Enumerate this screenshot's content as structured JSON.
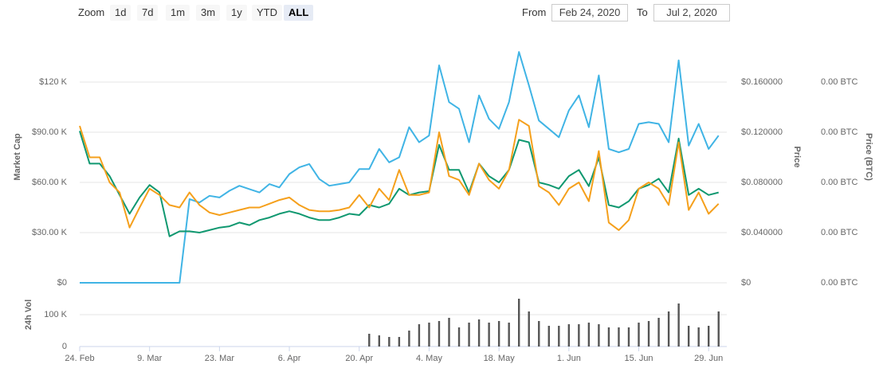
{
  "controls": {
    "zoom": "Zoom",
    "buttons": [
      "1d",
      "7d",
      "1m",
      "3m",
      "1y",
      "YTD",
      "ALL"
    ],
    "selected": "ALL",
    "from": "From",
    "from_date": "Feb 24, 2020",
    "to": "To",
    "to_date": "Jul 2, 2020"
  },
  "chart_data": [
    {
      "type": "line",
      "x": [
        "2020-02-24",
        "2020-02-26",
        "2020-02-28",
        "2020-03-01",
        "2020-03-03",
        "2020-03-05",
        "2020-03-07",
        "2020-03-09",
        "2020-03-11",
        "2020-03-13",
        "2020-03-15",
        "2020-03-17",
        "2020-03-19",
        "2020-03-21",
        "2020-03-23",
        "2020-03-25",
        "2020-03-27",
        "2020-03-29",
        "2020-03-31",
        "2020-04-02",
        "2020-04-04",
        "2020-04-06",
        "2020-04-08",
        "2020-04-10",
        "2020-04-12",
        "2020-04-14",
        "2020-04-16",
        "2020-04-18",
        "2020-04-20",
        "2020-04-22",
        "2020-04-24",
        "2020-04-26",
        "2020-04-28",
        "2020-04-30",
        "2020-05-02",
        "2020-05-04",
        "2020-05-06",
        "2020-05-08",
        "2020-05-10",
        "2020-05-12",
        "2020-05-14",
        "2020-05-16",
        "2020-05-18",
        "2020-05-20",
        "2020-05-22",
        "2020-05-24",
        "2020-05-26",
        "2020-05-28",
        "2020-05-30",
        "2020-06-01",
        "2020-06-03",
        "2020-06-05",
        "2020-06-07",
        "2020-06-09",
        "2020-06-11",
        "2020-06-13",
        "2020-06-15",
        "2020-06-17",
        "2020-06-19",
        "2020-06-21",
        "2020-06-23",
        "2020-06-25",
        "2020-06-27",
        "2020-06-29",
        "2020-07-01"
      ],
      "xlim": [
        "2020-02-24",
        "2020-07-02"
      ],
      "xticks": [
        {
          "value": "2020-02-24",
          "label": "24. Feb"
        },
        {
          "value": "2020-03-09",
          "label": "9. Mar"
        },
        {
          "value": "2020-03-23",
          "label": "23. Mar"
        },
        {
          "value": "2020-04-06",
          "label": "6. Apr"
        },
        {
          "value": "2020-04-20",
          "label": "20. Apr"
        },
        {
          "value": "2020-05-04",
          "label": "4. May"
        },
        {
          "value": "2020-05-18",
          "label": "18. May"
        },
        {
          "value": "2020-06-01",
          "label": "1. Jun"
        },
        {
          "value": "2020-06-15",
          "label": "15. Jun"
        },
        {
          "value": "2020-06-29",
          "label": "29. Jun"
        }
      ],
      "ylabel": "Market Cap",
      "y2label": "Price",
      "y3label": "Price (BTC)",
      "ylim": [
        0,
        150000
      ],
      "yticks": [
        {
          "value": 0,
          "label": "$0"
        },
        {
          "value": 30000,
          "label": "$30.00 K"
        },
        {
          "value": 60000,
          "label": "$60.00 K"
        },
        {
          "value": 90000,
          "label": "$90.00 K"
        },
        {
          "value": 120000,
          "label": "$120 K"
        }
      ],
      "y2lim": [
        0,
        0.2
      ],
      "y2ticks": [
        {
          "value": 0,
          "label": "$0"
        },
        {
          "value": 0.04,
          "label": "$0.040000"
        },
        {
          "value": 0.08,
          "label": "$0.080000"
        },
        {
          "value": 0.12,
          "label": "$0.120000"
        },
        {
          "value": 0.16,
          "label": "$0.160000"
        }
      ],
      "y3lim": [
        0,
        2e-05
      ],
      "y3ticks": [
        {
          "value": 0,
          "label": "0.00 BTC"
        },
        {
          "value": 4e-06,
          "label": "0.00 BTC"
        },
        {
          "value": 8e-06,
          "label": "0.00 BTC"
        },
        {
          "value": 1.2e-05,
          "label": "0.00 BTC"
        },
        {
          "value": 1.6e-05,
          "label": "0.00 BTC"
        }
      ],
      "grid": true,
      "series": [
        {
          "name": "Market Cap",
          "color": "#40b4e5",
          "axis": "y",
          "values": [
            0,
            0,
            0,
            0,
            0,
            0,
            0,
            0,
            0,
            0,
            0,
            50000,
            48000,
            52000,
            51000,
            55000,
            58000,
            56000,
            54000,
            59000,
            57000,
            65000,
            69000,
            71000,
            62000,
            58000,
            59000,
            60000,
            68000,
            68000,
            80000,
            72000,
            75000,
            93000,
            84000,
            88000,
            130000,
            108000,
            104000,
            84000,
            112000,
            98000,
            92000,
            108000,
            138000,
            118000,
            97000,
            92000,
            87000,
            103000,
            112000,
            93000,
            124000,
            80000,
            78000,
            80000,
            95000,
            96000,
            95000,
            84000,
            133000,
            82000,
            95000,
            80000,
            88000
          ]
        },
        {
          "name": "Price",
          "color": "#109870",
          "axis": "y2",
          "values": [
            0.121,
            0.095,
            0.095,
            0.085,
            0.07,
            0.055,
            0.068,
            0.078,
            0.072,
            0.037,
            0.041,
            0.041,
            0.04,
            0.042,
            0.044,
            0.045,
            0.048,
            0.046,
            0.05,
            0.052,
            0.055,
            0.057,
            0.055,
            0.052,
            0.05,
            0.05,
            0.052,
            0.055,
            0.054,
            0.062,
            0.06,
            0.063,
            0.075,
            0.07,
            0.072,
            0.073,
            0.11,
            0.09,
            0.09,
            0.072,
            0.095,
            0.085,
            0.08,
            0.09,
            0.114,
            0.112,
            0.08,
            0.078,
            0.075,
            0.085,
            0.09,
            0.077,
            0.1,
            0.062,
            0.06,
            0.065,
            0.075,
            0.078,
            0.083,
            0.072,
            0.115,
            0.07,
            0.075,
            0.07,
            0.072
          ]
        },
        {
          "name": "Price (BTC)",
          "color": "#f5a01c",
          "axis": "y3",
          "values": [
            1.25e-05,
            1e-05,
            1e-05,
            8e-06,
            7.2e-06,
            4.4e-06,
            6e-06,
            7.5e-06,
            7e-06,
            6.2e-06,
            6e-06,
            7.2e-06,
            6.2e-06,
            5.6e-06,
            5.4e-06,
            5.6e-06,
            5.8e-06,
            6e-06,
            6e-06,
            6.3e-06,
            6.6e-06,
            6.8e-06,
            6.2e-06,
            5.8e-06,
            5.7e-06,
            5.7e-06,
            5.8e-06,
            6e-06,
            7e-06,
            6e-06,
            7.5e-06,
            6.6e-06,
            9e-06,
            7e-06,
            7e-06,
            7.2e-06,
            1.2e-05,
            8.5e-06,
            8.2e-06,
            7e-06,
            9.5e-06,
            8.2e-06,
            7.5e-06,
            9e-06,
            1.3e-05,
            1.25e-05,
            7.7e-06,
            7.2e-06,
            6.2e-06,
            7.5e-06,
            8e-06,
            6.5e-06,
            1.05e-05,
            4.8e-06,
            4.2e-06,
            5e-06,
            7.5e-06,
            8e-06,
            7.5e-06,
            6.2e-06,
            1.12e-05,
            5.8e-06,
            7.2e-06,
            5.5e-06,
            6.3e-06
          ]
        }
      ]
    },
    {
      "type": "bar",
      "ylabel": "24h Vol",
      "color": "#555555",
      "x": [
        "2020-02-24",
        "2020-02-26",
        "2020-02-28",
        "2020-03-01",
        "2020-03-03",
        "2020-03-05",
        "2020-03-07",
        "2020-03-09",
        "2020-03-11",
        "2020-03-13",
        "2020-03-15",
        "2020-03-17",
        "2020-03-19",
        "2020-03-21",
        "2020-03-23",
        "2020-03-25",
        "2020-03-27",
        "2020-03-29",
        "2020-03-31",
        "2020-04-02",
        "2020-04-04",
        "2020-04-06",
        "2020-04-08",
        "2020-04-10",
        "2020-04-12",
        "2020-04-14",
        "2020-04-16",
        "2020-04-18",
        "2020-04-20",
        "2020-04-22",
        "2020-04-24",
        "2020-04-26",
        "2020-04-28",
        "2020-04-30",
        "2020-05-02",
        "2020-05-04",
        "2020-05-06",
        "2020-05-08",
        "2020-05-10",
        "2020-05-12",
        "2020-05-14",
        "2020-05-16",
        "2020-05-18",
        "2020-05-20",
        "2020-05-22",
        "2020-05-24",
        "2020-05-26",
        "2020-05-28",
        "2020-05-30",
        "2020-06-01",
        "2020-06-03",
        "2020-06-05",
        "2020-06-07",
        "2020-06-09",
        "2020-06-11",
        "2020-06-13",
        "2020-06-15",
        "2020-06-17",
        "2020-06-19",
        "2020-06-21",
        "2020-06-23",
        "2020-06-25",
        "2020-06-27",
        "2020-06-29",
        "2020-07-01"
      ],
      "xlim": [
        "2020-02-24",
        "2020-07-02"
      ],
      "ylim": [
        0,
        200000
      ],
      "yticks": [
        0,
        {
          "value": 100000,
          "label": "100 K"
        }
      ],
      "values": [
        0,
        0,
        0,
        0,
        0,
        0,
        0,
        0,
        0,
        0,
        0,
        0,
        0,
        0,
        0,
        0,
        0,
        0,
        0,
        0,
        0,
        0,
        0,
        0,
        0,
        0,
        0,
        0,
        0,
        40000,
        35000,
        30000,
        30000,
        50000,
        70000,
        75000,
        80000,
        90000,
        60000,
        75000,
        85000,
        75000,
        80000,
        75000,
        150000,
        110000,
        80000,
        65000,
        65000,
        70000,
        70000,
        75000,
        70000,
        60000,
        60000,
        60000,
        75000,
        80000,
        90000,
        110000,
        135000,
        65000,
        60000,
        65000,
        110000
      ]
    }
  ]
}
